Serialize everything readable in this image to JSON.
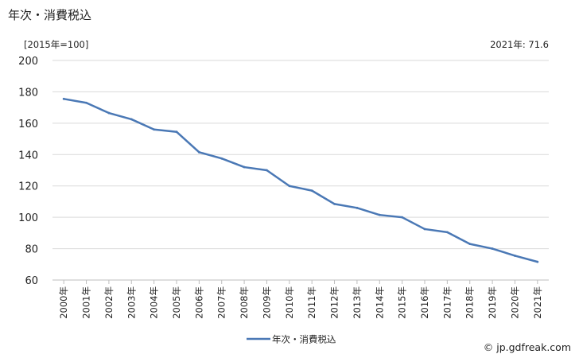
{
  "header": {
    "title": "年次・消費税込",
    "unit_label": "[2015年=100]",
    "latest_label": "2021年: 71.6"
  },
  "footer": {
    "credit": "© jp.gdfreak.com"
  },
  "chart_data": {
    "type": "line",
    "categories": [
      "2000年",
      "2001年",
      "2002年",
      "2003年",
      "2004年",
      "2005年",
      "2006年",
      "2007年",
      "2008年",
      "2009年",
      "2010年",
      "2011年",
      "2012年",
      "2013年",
      "2014年",
      "2015年",
      "2016年",
      "2017年",
      "2018年",
      "2019年",
      "2020年",
      "2021年"
    ],
    "series": [
      {
        "name": "年次・消費税込",
        "color": "#4a78b5",
        "values": [
          175.5,
          173.0,
          166.5,
          162.5,
          156.0,
          154.5,
          141.5,
          137.5,
          132.0,
          130.0,
          120.0,
          117.0,
          108.5,
          106.0,
          101.5,
          100.0,
          92.5,
          90.5,
          83.0,
          80.0,
          75.5,
          71.6
        ]
      }
    ],
    "ylim": [
      60,
      200
    ],
    "yticks": [
      60,
      80,
      100,
      120,
      140,
      160,
      180,
      200
    ],
    "grid": true,
    "legend_position": "bottom"
  }
}
